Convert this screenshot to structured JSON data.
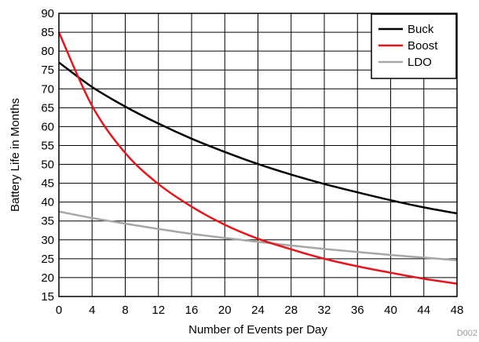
{
  "chart_data": {
    "type": "line",
    "title": "",
    "xlabel": "Number of Events per Day",
    "ylabel": "Battery Life in Months",
    "xlim": [
      0,
      48
    ],
    "ylim": [
      15,
      90
    ],
    "x_ticks": [
      0,
      4,
      8,
      12,
      16,
      20,
      24,
      28,
      32,
      36,
      40,
      44,
      48
    ],
    "y_ticks": [
      15,
      20,
      25,
      30,
      35,
      40,
      45,
      50,
      55,
      60,
      65,
      70,
      75,
      80,
      85,
      90
    ],
    "grid": true,
    "legend_position": "top-right",
    "code": "D002",
    "x": [
      0,
      4,
      8,
      12,
      16,
      20,
      24,
      28,
      32,
      36,
      40,
      44,
      48
    ],
    "series": [
      {
        "name": "Buck",
        "color": "#000000",
        "values": [
          77,
          70.5,
          65.3,
          60.8,
          56.8,
          53.3,
          50.1,
          47.3,
          44.8,
          42.6,
          40.5,
          38.6,
          37
        ]
      },
      {
        "name": "Boost",
        "color": "#e8141b",
        "values": [
          85,
          65.5,
          53,
          44.8,
          38.8,
          34,
          30.3,
          27.5,
          25,
          23,
          21.3,
          19.7,
          18.4
        ]
      },
      {
        "name": "LDO",
        "color": "#a6a6a6",
        "values": [
          37.5,
          35.8,
          34.3,
          32.9,
          31.6,
          30.5,
          29.5,
          28.5,
          27.6,
          26.8,
          26,
          25.3,
          24.6
        ]
      }
    ]
  }
}
